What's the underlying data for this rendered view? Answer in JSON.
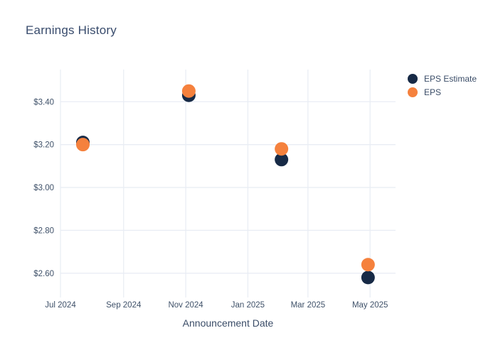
{
  "chart_data": {
    "type": "scatter",
    "title": "Earnings History",
    "xlabel": "Announcement Date",
    "ylabel": "",
    "legend_position": "right",
    "grid": true,
    "background": "#ffffff",
    "colors": {
      "grid": "#e9edf4",
      "title_text": "#384b6c",
      "tick_text": "#3f5169",
      "axis_title_text": "#3b4d68"
    },
    "x_axis": {
      "range": [
        "2024-07-01",
        "2025-05-26"
      ],
      "ticks": [
        {
          "label": "Jul 2024",
          "date": "2024-07-01"
        },
        {
          "label": "Sep 2024",
          "date": "2024-09-01"
        },
        {
          "label": "Nov 2024",
          "date": "2024-11-01"
        },
        {
          "label": "Jan 2025",
          "date": "2025-01-01"
        },
        {
          "label": "Mar 2025",
          "date": "2025-03-01"
        },
        {
          "label": "May 2025",
          "date": "2025-05-01"
        }
      ]
    },
    "y_axis": {
      "range": [
        2.5,
        3.55
      ],
      "tick_prefix": "$",
      "ticks": [
        {
          "label": "$2.60",
          "value": 2.6
        },
        {
          "label": "$2.80",
          "value": 2.8
        },
        {
          "label": "$3.00",
          "value": 3.0
        },
        {
          "label": "$3.20",
          "value": 3.2
        },
        {
          "label": "$3.40",
          "value": 3.4
        }
      ]
    },
    "marker_diameter_px": 19,
    "series": [
      {
        "name": "EPS Estimate",
        "color": "#172a46",
        "points": [
          {
            "date": "2024-07-23",
            "value": 3.21
          },
          {
            "date": "2024-11-04",
            "value": 3.43
          },
          {
            "date": "2025-02-03",
            "value": 3.13
          },
          {
            "date": "2025-04-29",
            "value": 2.58
          }
        ]
      },
      {
        "name": "EPS",
        "color": "#f5813d",
        "points": [
          {
            "date": "2024-07-23",
            "value": 3.2
          },
          {
            "date": "2024-11-04",
            "value": 3.45
          },
          {
            "date": "2025-02-03",
            "value": 3.18
          },
          {
            "date": "2025-04-29",
            "value": 2.64
          }
        ]
      }
    ]
  }
}
